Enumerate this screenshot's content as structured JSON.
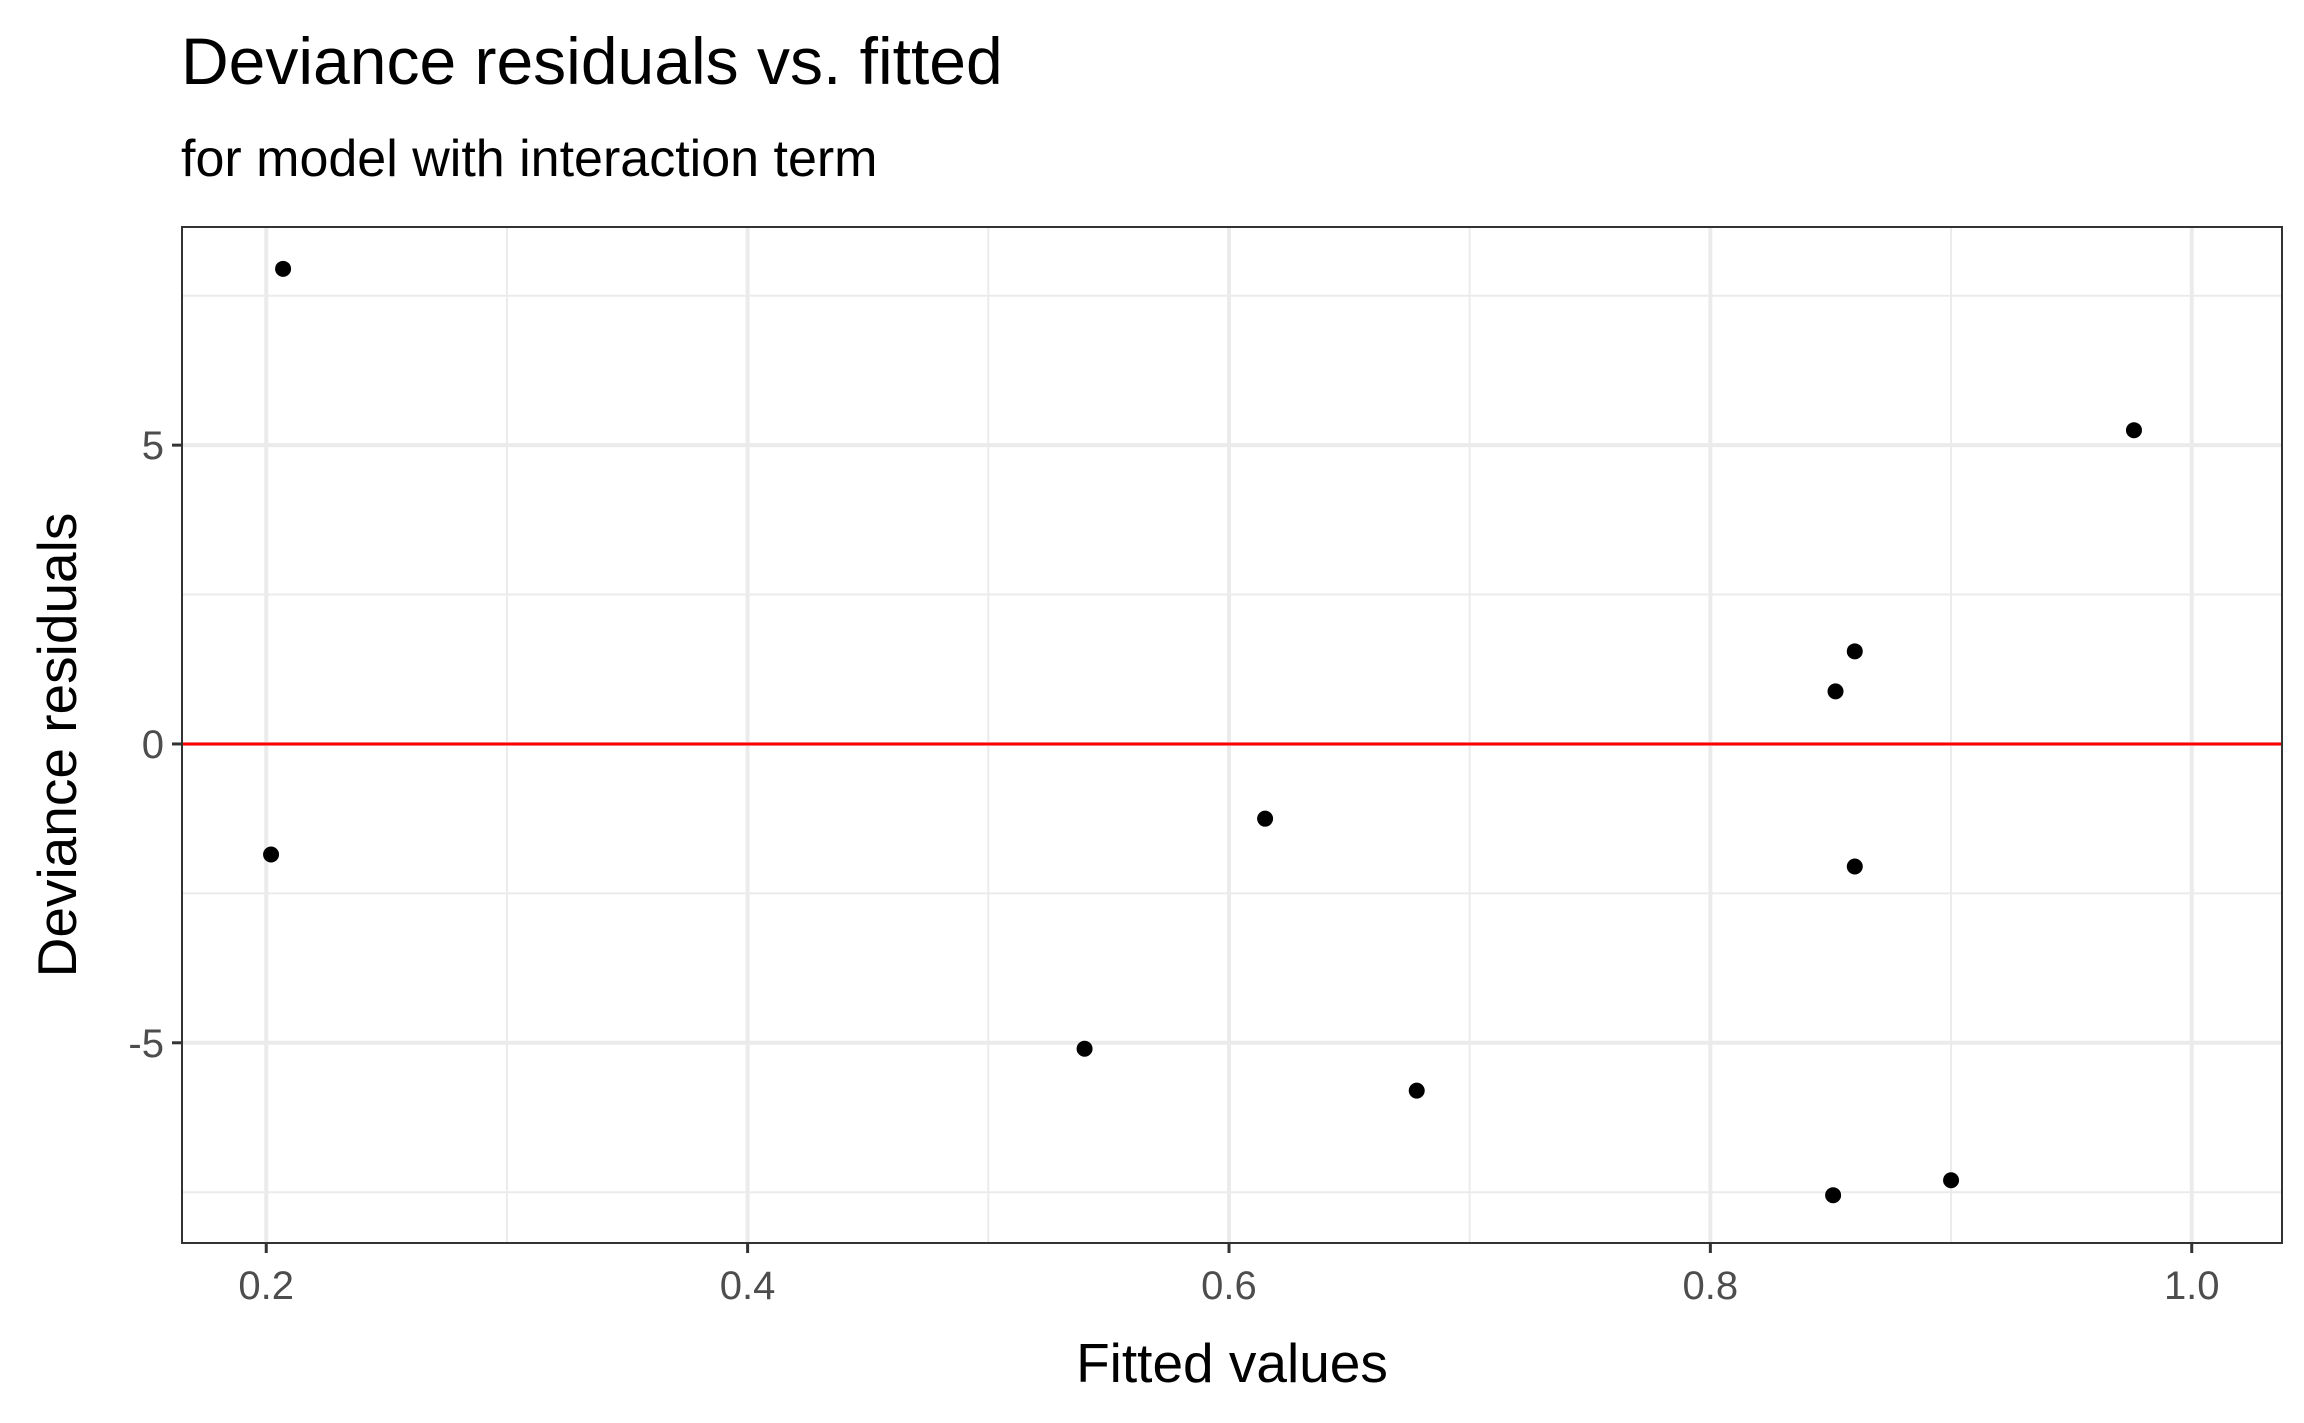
{
  "chart_data": {
    "type": "scatter",
    "title": "Deviance residuals vs. fitted",
    "subtitle": "for model with interaction term",
    "xlabel": "Fitted values",
    "ylabel": "Deviance residuals",
    "xlim": [
      0.165,
      1.0375
    ],
    "ylim": [
      -8.35,
      8.65
    ],
    "x_ticks": [
      0.2,
      0.4,
      0.6,
      0.8,
      1.0
    ],
    "x_tick_labels": [
      "0.2",
      "0.4",
      "0.6",
      "0.8",
      "1.0"
    ],
    "y_ticks": [
      -5,
      0,
      5
    ],
    "y_tick_labels": [
      "-5",
      "0",
      "5"
    ],
    "x_minor": [
      0.3,
      0.5,
      0.7,
      0.9
    ],
    "y_minor": [
      -7.5,
      -2.5,
      2.5,
      7.5
    ],
    "grid": true,
    "reference_line": {
      "y": 0,
      "color": "#ff0000"
    },
    "points": [
      {
        "x": 0.207,
        "y": 7.95
      },
      {
        "x": 0.202,
        "y": -1.85
      },
      {
        "x": 0.54,
        "y": -5.1
      },
      {
        "x": 0.615,
        "y": -1.25
      },
      {
        "x": 0.678,
        "y": -5.8
      },
      {
        "x": 0.852,
        "y": 0.88
      },
      {
        "x": 0.86,
        "y": 1.55
      },
      {
        "x": 0.86,
        "y": -2.05
      },
      {
        "x": 0.851,
        "y": -7.55
      },
      {
        "x": 0.9,
        "y": -7.3
      },
      {
        "x": 0.976,
        "y": 5.25
      }
    ],
    "point_color": "#000000",
    "grid_color": "#ebebeb",
    "panel_border_color": "#333333"
  }
}
